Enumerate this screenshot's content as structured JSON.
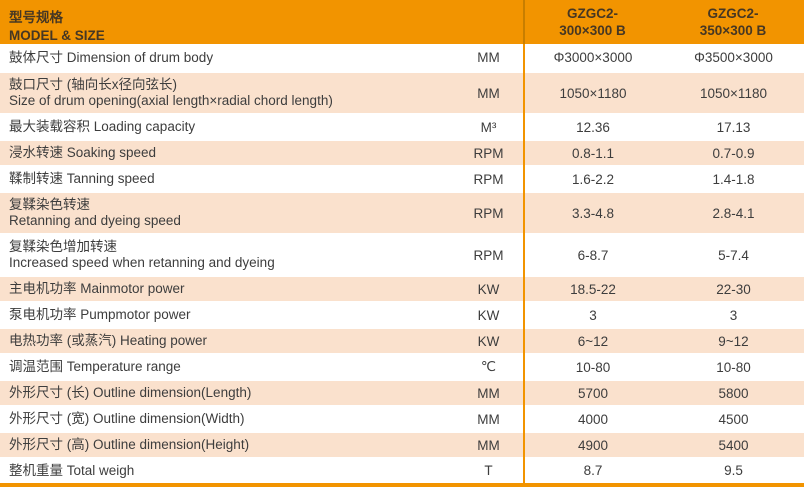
{
  "colors": {
    "header_orange": "#F29400",
    "row_peach": "#FAE1CD",
    "divider_orange": "#F29400",
    "header_divider_dark": "#C87E00",
    "body_text": "#3d3d3d",
    "header_text": "#463723"
  },
  "header": {
    "label_zh": "型号规格",
    "label_en": "MODEL & SIZE",
    "columns": [
      {
        "line1": "GZGC2-",
        "line2": "300×300 B"
      },
      {
        "line1": "GZGC2-",
        "line2": "350×300 B"
      }
    ]
  },
  "rows": [
    {
      "l1": "鼓体尺寸 Dimension of drum body",
      "l2": "",
      "unit": "MM",
      "v1": "Φ3000×3000",
      "v2": "Φ3500×3000",
      "shaded": false
    },
    {
      "l1": "鼓口尺寸 (轴向长x径向弦长)",
      "l2": "Size of drum opening(axial length×radial chord length)",
      "unit": "MM",
      "v1": "1050×1180",
      "v2": "1050×1180",
      "shaded": true
    },
    {
      "l1": "最大装载容积 Loading capacity",
      "l2": "",
      "unit": "M³",
      "v1": "12.36",
      "v2": "17.13",
      "shaded": false
    },
    {
      "l1": "浸水转速 Soaking speed",
      "l2": "",
      "unit": "RPM",
      "v1": "0.8-1.1",
      "v2": "0.7-0.9",
      "shaded": true
    },
    {
      "l1": "鞣制转速 Tanning speed",
      "l2": "",
      "unit": "RPM",
      "v1": "1.6-2.2",
      "v2": "1.4-1.8",
      "shaded": false
    },
    {
      "l1": "复鞣染色转速",
      "l2": "Retanning and dyeing speed",
      "unit": "RPM",
      "v1": "3.3-4.8",
      "v2": "2.8-4.1",
      "shaded": true
    },
    {
      "l1": "复鞣染色增加转速",
      "l2": "Increased speed when retanning and dyeing",
      "unit": "RPM",
      "v1": "6-8.7",
      "v2": "5-7.4",
      "shaded": false
    },
    {
      "l1": "主电机功率 Mainmotor power",
      "l2": "",
      "unit": "KW",
      "v1": "18.5-22",
      "v2": "22-30",
      "shaded": true
    },
    {
      "l1": "泵电机功率 Pumpmotor power",
      "l2": "",
      "unit": "KW",
      "v1": "3",
      "v2": "3",
      "shaded": false
    },
    {
      "l1": "电热功率 (或蒸汽) Heating power",
      "l2": "",
      "unit": "KW",
      "v1": "6~12",
      "v2": "9~12",
      "shaded": true
    },
    {
      "l1": "调温范围 Temperature range",
      "l2": "",
      "unit": "℃",
      "v1": "10-80",
      "v2": "10-80",
      "shaded": false
    },
    {
      "l1": "外形尺寸 (长) Outline dimension(Length)",
      "l2": "",
      "unit": "MM",
      "v1": "5700",
      "v2": "5800",
      "shaded": true
    },
    {
      "l1": "外形尺寸 (宽) Outline dimension(Width)",
      "l2": "",
      "unit": "MM",
      "v1": "4000",
      "v2": "4500",
      "shaded": false
    },
    {
      "l1": "外形尺寸 (高) Outline dimension(Height)",
      "l2": "",
      "unit": "MM",
      "v1": "4900",
      "v2": "5400",
      "shaded": true
    },
    {
      "l1": "整机重量 Total weigh",
      "l2": "",
      "unit": "T",
      "v1": "8.7",
      "v2": "9.5",
      "shaded": false
    }
  ]
}
